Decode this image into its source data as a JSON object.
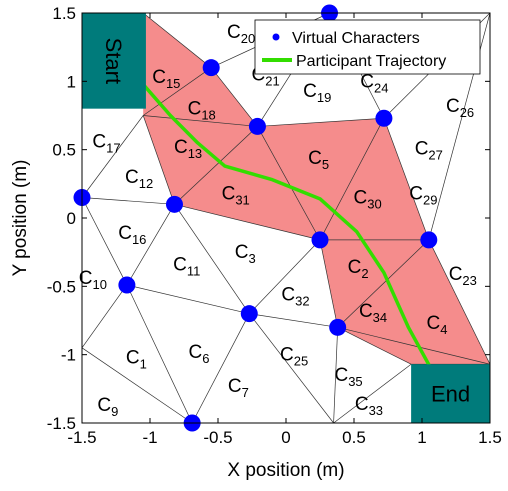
{
  "chart_data": {
    "type": "scatter",
    "title": "",
    "xlabel": "X position (m)",
    "ylabel": "Y position (m)",
    "xlim": [
      -1.5,
      1.5
    ],
    "ylim": [
      -1.5,
      1.5
    ],
    "xticks": [
      "-1.5",
      "-1",
      "-0.5",
      "0",
      "0.5",
      "1",
      "1.5"
    ],
    "yticks": [
      "-1.5",
      "-1",
      "-0.5",
      "0",
      "0.5",
      "1",
      "1.5"
    ],
    "grid": false,
    "legend_position": "top-right",
    "series": [
      {
        "name": "Virtual Characters",
        "color": "#0000ff",
        "points": [
          [
            0.32,
            1.5
          ],
          [
            -0.55,
            1.1
          ],
          [
            -0.21,
            0.67
          ],
          [
            0.72,
            0.73
          ],
          [
            -1.5,
            0.15
          ],
          [
            -0.82,
            0.1
          ],
          [
            0.25,
            -0.16
          ],
          [
            1.05,
            -0.16
          ],
          [
            -1.17,
            -0.49
          ],
          [
            -0.27,
            -0.7
          ],
          [
            0.38,
            -0.8
          ],
          [
            -0.69,
            -1.5
          ]
        ]
      },
      {
        "name": "Participant Trajectory",
        "color": "#33dd00",
        "points": [
          [
            -1.07,
            1.0
          ],
          [
            -0.85,
            0.75
          ],
          [
            -0.65,
            0.55
          ],
          [
            -0.45,
            0.38
          ],
          [
            -0.1,
            0.28
          ],
          [
            0.25,
            0.14
          ],
          [
            0.52,
            -0.1
          ],
          [
            0.72,
            -0.4
          ],
          [
            0.9,
            -0.8
          ],
          [
            1.12,
            -1.2
          ]
        ]
      }
    ],
    "regions": [
      {
        "name": "Start",
        "color": "#007b7b",
        "x": [
          -1.5,
          -1.03
        ],
        "y": [
          0.8,
          1.5
        ]
      },
      {
        "name": "End",
        "color": "#007b7b",
        "x": [
          0.92,
          1.5
        ],
        "y": [
          -1.5,
          -1.07
        ]
      }
    ],
    "highlight_color": "#f58c8c",
    "cell_labels": [
      {
        "text": "C",
        "sub": "20",
        "x": -0.33,
        "y": 1.36
      },
      {
        "text": "C",
        "sub": "15",
        "x": -0.88,
        "y": 1.03
      },
      {
        "text": "C",
        "sub": "21",
        "x": -0.15,
        "y": 1.05
      },
      {
        "text": "C",
        "sub": "19",
        "x": 0.23,
        "y": 0.93
      },
      {
        "text": "C",
        "sub": "24",
        "x": 0.65,
        "y": 1.0
      },
      {
        "text": "C",
        "sub": "26",
        "x": 1.28,
        "y": 0.82
      },
      {
        "text": "C",
        "sub": "18",
        "x": -0.62,
        "y": 0.8
      },
      {
        "text": "C",
        "sub": "17",
        "x": -1.32,
        "y": 0.56
      },
      {
        "text": "C",
        "sub": "13",
        "x": -0.72,
        "y": 0.52
      },
      {
        "text": "C",
        "sub": "5",
        "x": 0.24,
        "y": 0.44
      },
      {
        "text": "C",
        "sub": "27",
        "x": 1.05,
        "y": 0.51
      },
      {
        "text": "C",
        "sub": "12",
        "x": -1.08,
        "y": 0.3
      },
      {
        "text": "C",
        "sub": "31",
        "x": -0.37,
        "y": 0.18
      },
      {
        "text": "C",
        "sub": "30",
        "x": 0.6,
        "y": 0.15
      },
      {
        "text": "C",
        "sub": "29",
        "x": 1.01,
        "y": 0.18
      },
      {
        "text": "C",
        "sub": "16",
        "x": -1.13,
        "y": -0.11
      },
      {
        "text": "C",
        "sub": "3",
        "x": -0.3,
        "y": -0.25
      },
      {
        "text": "C",
        "sub": "2",
        "x": 0.53,
        "y": -0.36
      },
      {
        "text": "C",
        "sub": "11",
        "x": -0.73,
        "y": -0.34
      },
      {
        "text": "C",
        "sub": "23",
        "x": 1.3,
        "y": -0.41
      },
      {
        "text": "C",
        "sub": "10",
        "x": -1.42,
        "y": -0.44
      },
      {
        "text": "C",
        "sub": "32",
        "x": 0.07,
        "y": -0.56
      },
      {
        "text": "C",
        "sub": "34",
        "x": 0.64,
        "y": -0.68
      },
      {
        "text": "C",
        "sub": "4",
        "x": 1.11,
        "y": -0.77
      },
      {
        "text": "C",
        "sub": "6",
        "x": -0.64,
        "y": -0.98
      },
      {
        "text": "C",
        "sub": "1",
        "x": -1.1,
        "y": -1.02
      },
      {
        "text": "C",
        "sub": "25",
        "x": 0.06,
        "y": -1.0
      },
      {
        "text": "C",
        "sub": "35",
        "x": 0.46,
        "y": -1.15
      },
      {
        "text": "C",
        "sub": "7",
        "x": -0.35,
        "y": -1.23
      },
      {
        "text": "C",
        "sub": "9",
        "x": -1.31,
        "y": -1.37
      },
      {
        "text": "C",
        "sub": "33",
        "x": 0.61,
        "y": -1.36
      }
    ]
  }
}
